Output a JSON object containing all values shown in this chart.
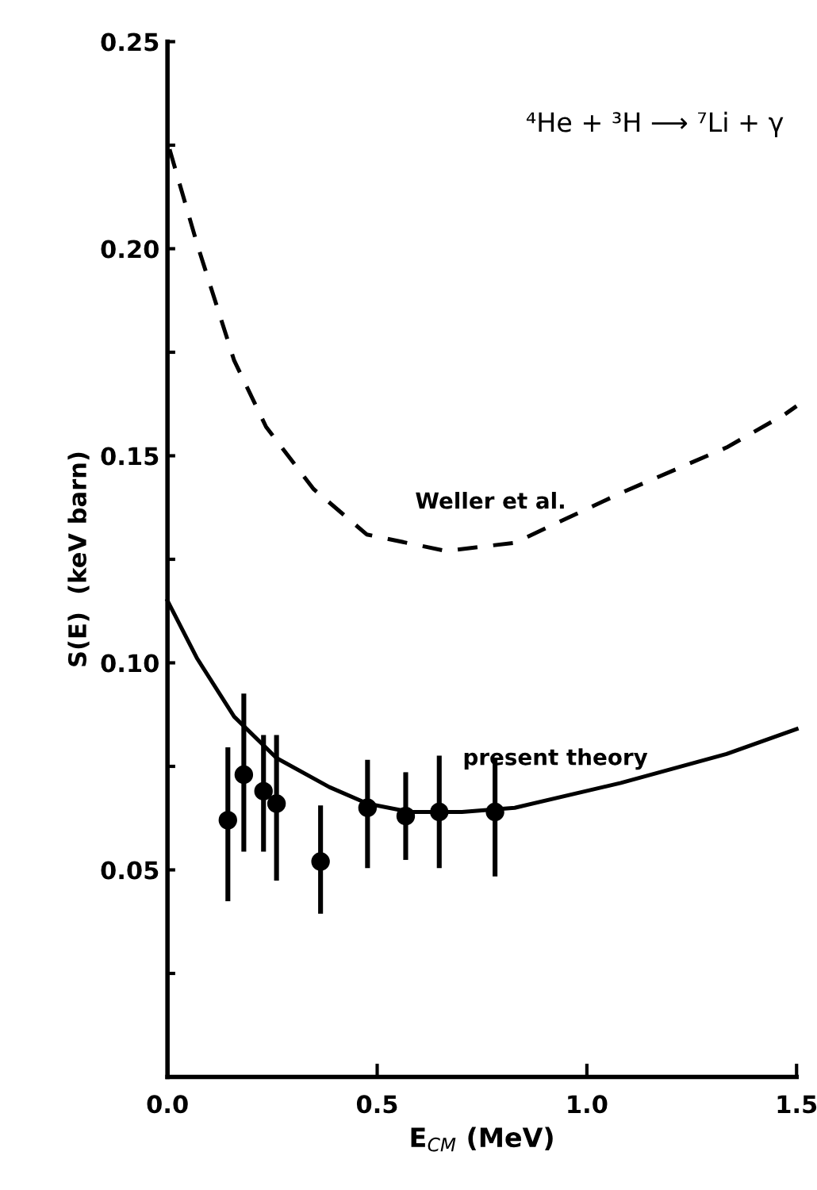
{
  "chart_data": {
    "type": "line",
    "xlabel": "E$_{CM}$ (MeV)",
    "ylabel": "S(E)  (keV barn)",
    "annotations": [
      "⁴He + ³H ⟶ ⁷Li + γ"
    ],
    "xlim": [
      0,
      1.5
    ],
    "ylim": [
      0,
      0.25
    ],
    "xticks": [
      {
        "value": 0,
        "label": "0.0"
      },
      0.5,
      {
        "value": 1.0,
        "label": "1.0"
      },
      1.5
    ],
    "yticks": [
      {
        "value": 0.025,
        "label": null
      },
      {
        "value": 0.05,
        "label": "0.05"
      },
      {
        "value": 0.075,
        "label": null
      },
      {
        "value": 0.1,
        "label": "0.10"
      },
      {
        "value": 0.125,
        "label": null
      },
      {
        "value": 0.15,
        "label": "0.15"
      },
      {
        "value": 0.175,
        "label": null
      },
      {
        "value": 0.2,
        "label": "0.20"
      },
      {
        "value": 0.225,
        "label": null
      },
      {
        "value": 0.25,
        "label": "0.25"
      }
    ],
    "grid": false,
    "legend": false,
    "series": [
      {
        "name": "Weller et al.",
        "color": "#000000",
        "line_style": "dashed",
        "marker": "none",
        "x": [
          0.005,
          0.071,
          0.159,
          0.235,
          0.348,
          0.475,
          0.664,
          0.828,
          1.081,
          1.333,
          1.472,
          1.5
        ],
        "values": [
          0.224,
          0.201,
          0.173,
          0.157,
          0.142,
          0.131,
          0.127,
          0.129,
          0.141,
          0.152,
          0.16,
          0.162
        ]
      },
      {
        "name": "present theory",
        "color": "#000000",
        "line_style": "solid",
        "marker": "none",
        "x": [
          0,
          0.071,
          0.159,
          0.26,
          0.386,
          0.477,
          0.578,
          0.702,
          0.828,
          1.081,
          1.333,
          1.5
        ],
        "values": [
          0.115,
          0.101,
          0.087,
          0.077,
          0.07,
          0.066,
          0.064,
          0.064,
          0.065,
          0.071,
          0.078,
          0.084
        ]
      },
      {
        "type": "scatter",
        "color": "#000000",
        "marker": "circle",
        "x": [
          0.144,
          0.182,
          0.229,
          0.26,
          0.365,
          0.477,
          0.568,
          0.648,
          0.781
        ],
        "values": [
          0.062,
          0.073,
          0.069,
          0.066,
          0.052,
          0.065,
          0.063,
          0.064,
          0.064
        ],
        "errors": [
          [
            0.043,
            0.079
          ],
          [
            0.055,
            0.092
          ],
          [
            0.055,
            0.082
          ],
          [
            0.048,
            0.082
          ],
          [
            0.04,
            0.065
          ],
          [
            0.051,
            0.076
          ],
          [
            0.053,
            0.073
          ],
          [
            0.051,
            0.077
          ],
          [
            0.049,
            0.076
          ]
        ]
      }
    ]
  }
}
